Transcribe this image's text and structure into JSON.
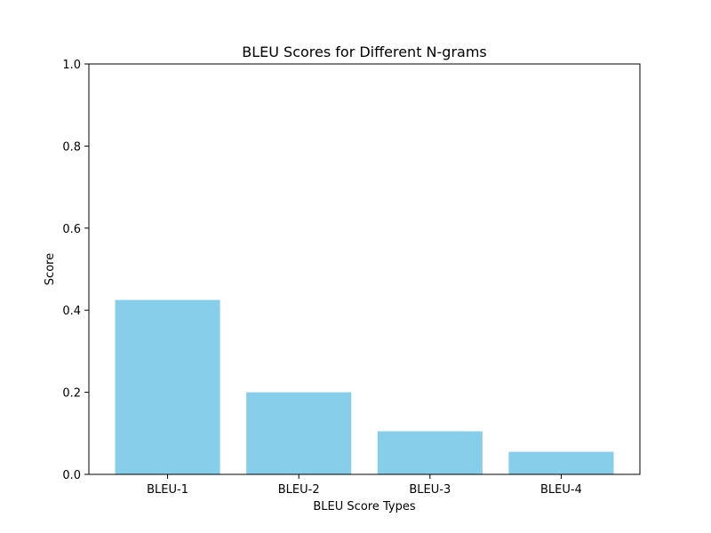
{
  "chart_data": {
    "type": "bar",
    "title": "BLEU Scores for Different N-grams",
    "xlabel": "BLEU Score Types",
    "ylabel": "Score",
    "categories": [
      "BLEU-1",
      "BLEU-2",
      "BLEU-3",
      "BLEU-4"
    ],
    "values": [
      0.425,
      0.2,
      0.105,
      0.055
    ],
    "ylim": [
      0,
      1.0
    ],
    "yticks": [
      "0.0",
      "0.2",
      "0.4",
      "0.6",
      "0.8",
      "1.0"
    ],
    "grid": false,
    "legend": "none",
    "bar_color": "#87CEEB"
  }
}
